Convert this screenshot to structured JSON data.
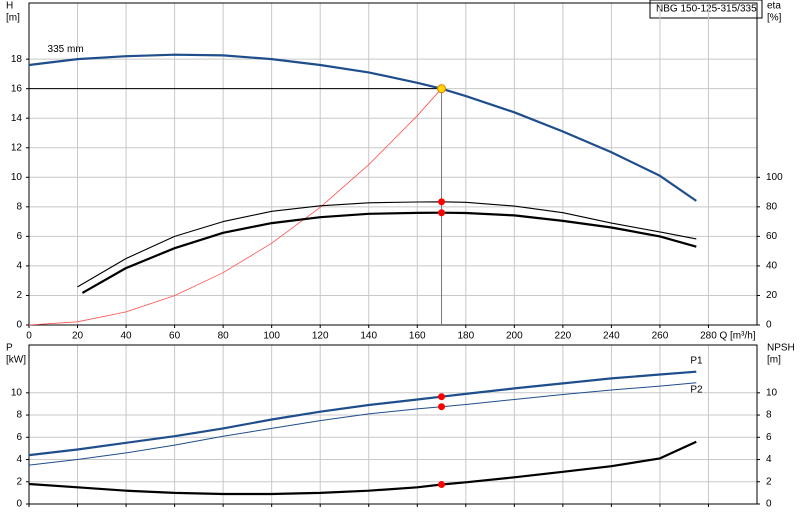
{
  "chart_data": [
    {
      "type": "line",
      "title": "NBG 150-125-315/335",
      "ylabel": [
        "H",
        "[m]"
      ],
      "y2label": [
        "eta",
        "[%]"
      ],
      "xlabel": "Q [m³/h]",
      "xlim": [
        0,
        300
      ],
      "xticks": [
        0,
        20,
        40,
        60,
        80,
        100,
        120,
        140,
        160,
        180,
        200,
        220,
        240,
        260,
        280
      ],
      "show_xtick_labels": true,
      "ylim": [
        0,
        21.8
      ],
      "yticks": [
        0,
        2,
        4,
        6,
        8,
        10,
        12,
        14,
        16,
        18
      ],
      "y2lim": [
        0,
        218
      ],
      "y2ticks": [
        0,
        20,
        40,
        60,
        80,
        100
      ],
      "grid": true,
      "series": [
        {
          "name": "335 mm",
          "color": "#1f4e8c",
          "linewidth": 2.2,
          "axis": "y",
          "x": [
            0,
            20,
            40,
            60,
            80,
            100,
            120,
            140,
            160,
            170,
            180,
            200,
            220,
            240,
            260,
            275
          ],
          "values": [
            17.6,
            18.0,
            18.2,
            18.3,
            18.25,
            18.0,
            17.6,
            17.1,
            16.4,
            16.0,
            15.5,
            14.4,
            13.1,
            11.7,
            10.1,
            8.4
          ]
        },
        {
          "color": "#ff5050",
          "linewidth": 0.8,
          "axis": "y",
          "x": [
            0,
            20,
            40,
            60,
            80,
            100,
            120,
            140,
            160,
            170
          ],
          "values": [
            0,
            0.22,
            0.89,
            1.99,
            3.54,
            5.54,
            7.97,
            10.85,
            14.17,
            16.0
          ]
        },
        {
          "color": "#000000",
          "linewidth": 1.1,
          "axis": "y2",
          "x": [
            20,
            40,
            60,
            80,
            100,
            120,
            140,
            160,
            170,
            180,
            200,
            220,
            240,
            260,
            275
          ],
          "values": [
            25.8,
            45,
            60,
            70,
            77,
            80.7,
            82.7,
            83.3,
            83.4,
            83.1,
            80.5,
            76,
            69,
            63,
            58.3
          ]
        },
        {
          "color": "#000000",
          "linewidth": 2.2,
          "axis": "y2",
          "x": [
            22,
            40,
            60,
            80,
            100,
            120,
            140,
            160,
            170,
            180,
            200,
            220,
            240,
            260,
            275
          ],
          "values": [
            21.7,
            38.6,
            52,
            62.4,
            69,
            73,
            75.3,
            75.9,
            76,
            75.8,
            74.2,
            70.5,
            66,
            60,
            53
          ]
        }
      ],
      "duty_point": {
        "x": 170,
        "y": 16,
        "color": "#ffd700"
      },
      "markers": [
        {
          "x": 170,
          "y": 83.4,
          "axis": "y2",
          "color": "#ff0000"
        },
        {
          "x": 170,
          "y": 76,
          "axis": "y2",
          "color": "#ff0000"
        }
      ]
    },
    {
      "type": "line",
      "ylabel": [
        "P",
        "[kW]"
      ],
      "y2label": [
        "NPSH",
        "[m]"
      ],
      "xlim": [
        0,
        300
      ],
      "xticks": [
        0,
        20,
        40,
        60,
        80,
        100,
        120,
        140,
        160,
        180,
        200,
        220,
        240,
        260,
        280
      ],
      "show_xtick_labels": false,
      "ylim": [
        0,
        14.3
      ],
      "yticks": [
        0,
        2,
        4,
        6,
        8,
        10
      ],
      "y2lim": [
        0,
        14.3
      ],
      "y2ticks": [
        0,
        2,
        4,
        6,
        8,
        10
      ],
      "grid": true,
      "series": [
        {
          "name": "P1",
          "color": "#1f4e8c",
          "linewidth": 2.2,
          "axis": "y",
          "x": [
            0,
            20,
            40,
            60,
            80,
            100,
            120,
            140,
            160,
            170,
            180,
            200,
            220,
            240,
            260,
            275
          ],
          "values": [
            4.4,
            4.9,
            5.5,
            6.1,
            6.8,
            7.6,
            8.3,
            8.9,
            9.4,
            9.65,
            9.9,
            10.4,
            10.85,
            11.3,
            11.65,
            11.9
          ]
        },
        {
          "name": "P2",
          "color": "#1f4e8c",
          "linewidth": 1,
          "axis": "y",
          "x": [
            0,
            20,
            40,
            60,
            80,
            100,
            120,
            140,
            160,
            170,
            180,
            200,
            220,
            240,
            260,
            275
          ],
          "values": [
            3.5,
            4.0,
            4.6,
            5.3,
            6.1,
            6.8,
            7.5,
            8.1,
            8.55,
            8.75,
            8.95,
            9.4,
            9.85,
            10.25,
            10.6,
            10.9
          ]
        },
        {
          "color": "#000000",
          "linewidth": 2.2,
          "axis": "y2",
          "x": [
            0,
            20,
            40,
            60,
            80,
            100,
            120,
            140,
            160,
            170,
            180,
            200,
            220,
            240,
            260,
            275
          ],
          "values": [
            1.8,
            1.5,
            1.2,
            1.0,
            0.9,
            0.9,
            1.0,
            1.2,
            1.5,
            1.75,
            1.95,
            2.4,
            2.9,
            3.4,
            4.1,
            5.6
          ]
        }
      ],
      "markers": [
        {
          "x": 170,
          "y": 9.65,
          "axis": "y",
          "color": "#ff0000"
        },
        {
          "x": 170,
          "y": 8.75,
          "axis": "y",
          "color": "#ff0000"
        },
        {
          "x": 170,
          "y": 1.75,
          "axis": "y2",
          "color": "#ff0000"
        }
      ]
    }
  ]
}
